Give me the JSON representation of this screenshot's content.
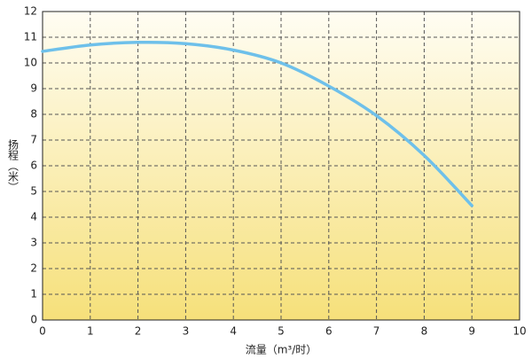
{
  "chart_data": {
    "type": "line",
    "x_label": "流量（m³/时）",
    "y_label": "扬程（米）",
    "x": [
      0,
      1,
      2,
      3,
      4,
      5,
      6,
      7,
      8,
      9
    ],
    "series": [
      {
        "color": "#6ec0ea",
        "values": [
          10.45,
          10.7,
          10.8,
          10.75,
          10.5,
          10.0,
          9.1,
          7.95,
          6.4,
          4.45
        ]
      }
    ],
    "xlim": [
      0,
      10
    ],
    "ylim": [
      0,
      12
    ],
    "xticks": [
      0,
      1,
      2,
      3,
      4,
      5,
      6,
      7,
      8,
      9,
      10
    ],
    "yticks": [
      0,
      1,
      2,
      3,
      4,
      5,
      6,
      7,
      8,
      9,
      10,
      11,
      12
    ],
    "grid": true
  }
}
